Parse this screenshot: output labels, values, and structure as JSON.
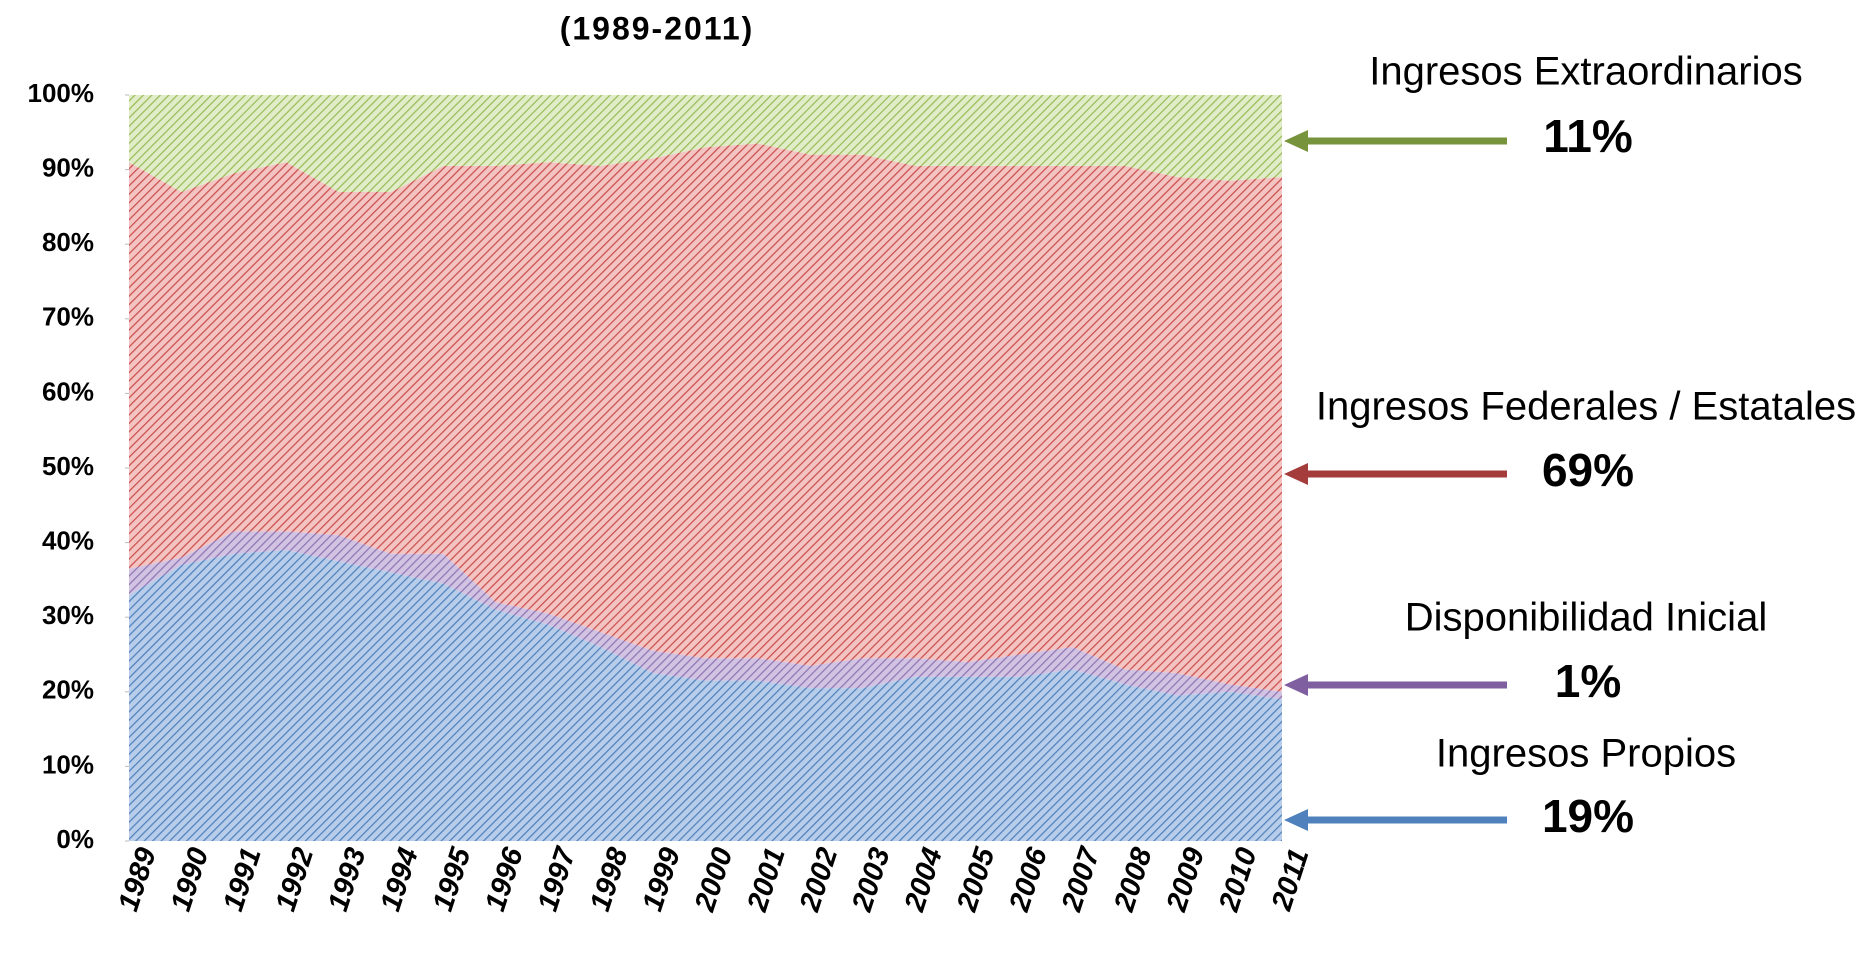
{
  "chart_data": {
    "type": "stacked_area",
    "title": "(1989-2011)",
    "categories": [
      "1989",
      "1990",
      "1991",
      "1992",
      "1993",
      "1994",
      "1995",
      "1996",
      "1997",
      "1998",
      "1999",
      "2000",
      "2001",
      "2002",
      "2003",
      "2004",
      "2005",
      "2006",
      "2007",
      "2008",
      "2009",
      "2010",
      "2011"
    ],
    "ylim": [
      0,
      100
    ],
    "yticks": [
      {
        "value": 0,
        "label": "0%"
      },
      {
        "value": 10,
        "label": "10%"
      },
      {
        "value": 20,
        "label": "20%"
      },
      {
        "value": 30,
        "label": "30%"
      },
      {
        "value": 40,
        "label": "40%"
      },
      {
        "value": 50,
        "label": "50%"
      },
      {
        "value": 60,
        "label": "60%"
      },
      {
        "value": 70,
        "label": "70%"
      },
      {
        "value": 80,
        "label": "80%"
      },
      {
        "value": 90,
        "label": "90%"
      },
      {
        "value": 100,
        "label": "100%"
      }
    ],
    "series": [
      {
        "name": "Ingresos Propios",
        "color": "#4f81bd",
        "values": [
          33,
          37,
          38.5,
          39,
          37.5,
          36,
          34.5,
          31,
          29,
          26,
          22.5,
          21.5,
          21.5,
          20.5,
          20.5,
          22,
          22,
          22,
          23,
          21,
          19.5,
          20,
          19
        ],
        "value_labels": [
          null,
          null,
          null,
          null,
          null,
          null,
          null,
          null,
          null,
          null,
          null,
          null,
          null,
          null,
          null,
          null,
          null,
          null,
          null,
          null,
          null,
          null,
          "19%"
        ]
      },
      {
        "name": "Disponibilidad Inicial",
        "color": "#7f5f9f",
        "values": [
          3.5,
          1,
          3,
          2.5,
          3.5,
          2.5,
          4,
          1,
          1.5,
          2,
          3,
          3,
          3,
          3,
          4,
          2.5,
          2,
          3,
          3,
          2,
          3,
          1,
          1
        ],
        "value_labels": [
          null,
          null,
          null,
          null,
          null,
          null,
          null,
          null,
          null,
          null,
          null,
          null,
          null,
          null,
          null,
          null,
          null,
          null,
          null,
          null,
          null,
          null,
          "1%"
        ]
      },
      {
        "name": "Ingresos Federales / Estatales",
        "color": "#a33c3a",
        "values": [
          54.5,
          49,
          48,
          49.5,
          46,
          48.5,
          52,
          58.5,
          60.5,
          62.5,
          66,
          68.5,
          69,
          68.5,
          67.5,
          66,
          66.5,
          65.5,
          64.5,
          67.5,
          66.5,
          67.5,
          69
        ],
        "value_labels": [
          null,
          null,
          null,
          null,
          null,
          null,
          null,
          null,
          null,
          null,
          null,
          null,
          null,
          null,
          null,
          null,
          null,
          null,
          null,
          null,
          null,
          null,
          "69%"
        ]
      },
      {
        "name": "Ingresos Extraordinarios",
        "color": "#77933c",
        "values": [
          9,
          13,
          10.5,
          9,
          13,
          13,
          9.5,
          9.5,
          9,
          9.5,
          8.5,
          7,
          6.5,
          8,
          8,
          9.5,
          9.5,
          9.5,
          9.5,
          9.5,
          11,
          11.5,
          11
        ],
        "value_labels": [
          null,
          null,
          null,
          null,
          null,
          null,
          null,
          null,
          null,
          null,
          null,
          null,
          null,
          null,
          null,
          null,
          null,
          null,
          null,
          null,
          null,
          null,
          "11%"
        ]
      }
    ]
  }
}
